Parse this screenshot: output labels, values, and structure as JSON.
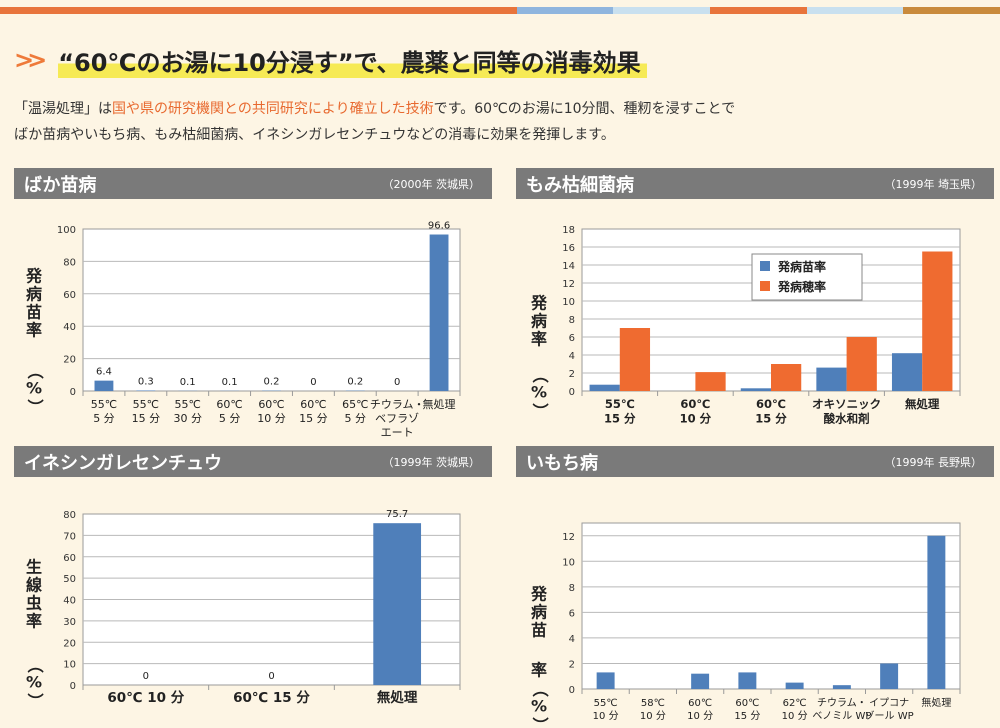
{
  "colors": {
    "bar": "#4f7fba",
    "orange": "#ef6b30"
  },
  "heading": {
    "title": "“60℃のお湯に10分浸す”で、農薬と同等の消毒効果"
  },
  "intro": {
    "part1": "「温湯処理」は",
    "highlight": "国や県の研究機関との共同研究により確立した技術",
    "part2": "です。60℃のお湯に10分間、種籾を浸すことで",
    "line2": "ばか苗病やいもち病、もみ枯細菌病、イネシンガレセンチュウなどの消毒に効果を発揮します。"
  },
  "panels": [
    {
      "title": "ばか苗病",
      "source": "（2000年 茨城県）"
    },
    {
      "title": "もみ枯細菌病",
      "source": "（1999年 埼玉県）"
    },
    {
      "title": "イネシンガレセンチュウ",
      "source": "（1999年 茨城県）"
    },
    {
      "title": "いもち病",
      "source": "（1999年 長野県）"
    }
  ],
  "chart_data": [
    {
      "type": "bar",
      "ylabel": "発病苗率（%）",
      "ylim": [
        0,
        100
      ],
      "yticks": [
        0,
        20,
        40,
        60,
        80,
        100
      ],
      "categories": [
        [
          "55℃",
          "5 分"
        ],
        [
          "55℃",
          "15 分"
        ],
        [
          "55℃",
          "30 分"
        ],
        [
          "60℃",
          "5 分"
        ],
        [
          "60℃",
          "10 分"
        ],
        [
          "60℃",
          "15 分"
        ],
        [
          "65℃",
          "5 分"
        ],
        [
          "チウラム・",
          "ベフラゾ",
          "エート"
        ],
        [
          "無処理"
        ]
      ],
      "values": [
        6.4,
        0.3,
        0.1,
        0.1,
        0.2,
        0,
        0.2,
        0,
        96.6
      ],
      "labels": [
        "6.4",
        "0.3",
        "0.1",
        "0.1",
        "0.2",
        "0",
        "0.2",
        "0",
        "96.6"
      ]
    },
    {
      "type": "bar",
      "ylabel": "発病率（%）",
      "ylim": [
        0,
        18
      ],
      "yticks": [
        0,
        2,
        4,
        6,
        8,
        10,
        12,
        14,
        16,
        18
      ],
      "categories": [
        [
          "55℃",
          "15 分"
        ],
        [
          "60℃",
          "10 分"
        ],
        [
          "60℃",
          "15 分"
        ],
        [
          "オキソニック",
          "酸水和剤"
        ],
        [
          "無処理"
        ]
      ],
      "series": [
        {
          "name": "発病苗率",
          "color": "#4f7fba",
          "values": [
            0.7,
            0,
            0.3,
            2.6,
            4.2
          ]
        },
        {
          "name": "発病穂率",
          "color": "#ef6b30",
          "values": [
            7.0,
            2.1,
            3.0,
            6.0,
            15.5
          ]
        }
      ],
      "legend": "top-center"
    },
    {
      "type": "bar",
      "ylabel": "生線虫率（%）",
      "ylim": [
        0,
        80
      ],
      "yticks": [
        0,
        10,
        20,
        30,
        40,
        50,
        60,
        70,
        80
      ],
      "categories": [
        [
          "60℃ 10 分"
        ],
        [
          "60℃ 15 分"
        ],
        [
          "無処理"
        ]
      ],
      "values": [
        0,
        0,
        75.7
      ],
      "labels": [
        "0",
        "0",
        "75.7"
      ]
    },
    {
      "type": "bar",
      "ylabel": "発病苗率（%）",
      "ylim": [
        0,
        13
      ],
      "yticks": [
        0,
        2,
        4,
        6,
        8,
        10,
        12
      ],
      "categories": [
        [
          "55℃",
          "10 分"
        ],
        [
          "58℃",
          "10 分"
        ],
        [
          "60℃",
          "10 分"
        ],
        [
          "60℃",
          "15 分"
        ],
        [
          "62℃",
          "10 分"
        ],
        [
          "チウラム・",
          "ベノミル WP"
        ],
        [
          "イプコナ",
          "ゾール WP"
        ],
        [
          "無処理"
        ]
      ],
      "values": [
        1.3,
        0,
        1.2,
        1.3,
        0.5,
        0.3,
        2.0,
        12.0
      ]
    }
  ]
}
